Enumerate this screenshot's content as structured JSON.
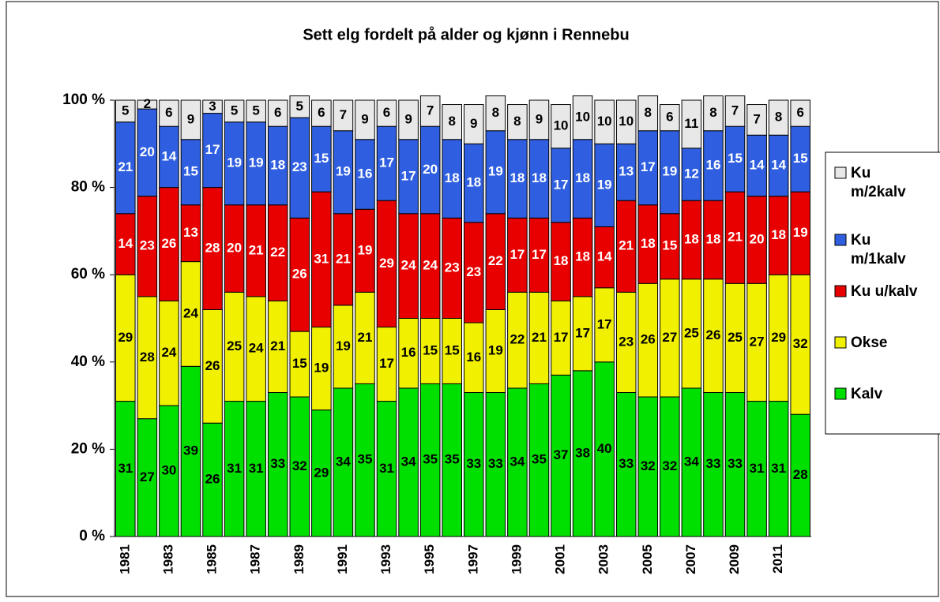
{
  "chart_data": {
    "type": "stacked-bar",
    "title": "Sett elg fordelt på alder og kjønn i Rennebu",
    "categories": [
      "1981",
      null,
      "1983",
      null,
      "1985",
      null,
      "1987",
      null,
      "1989",
      null,
      "1991",
      null,
      "1993",
      null,
      "1995",
      null,
      "1997",
      null,
      "1999",
      null,
      "2001",
      null,
      "2003",
      null,
      "2005",
      null,
      "2007",
      null,
      "2009",
      null,
      "2011",
      null
    ],
    "series": [
      {
        "name": "Kalv",
        "color": "#00e000",
        "values": [
          31,
          27,
          30,
          39,
          26,
          31,
          31,
          33,
          32,
          29,
          34,
          35,
          31,
          34,
          35,
          35,
          33,
          33,
          34,
          35,
          37,
          38,
          40,
          33,
          32,
          32,
          34,
          33,
          33,
          31,
          31,
          28
        ]
      },
      {
        "name": "Okse",
        "color": "#f0f000",
        "values": [
          29,
          28,
          24,
          24,
          26,
          25,
          24,
          21,
          15,
          19,
          19,
          21,
          17,
          16,
          15,
          15,
          16,
          19,
          22,
          21,
          17,
          17,
          17,
          23,
          26,
          27,
          25,
          26,
          25,
          27,
          29,
          32
        ]
      },
      {
        "name": "Ku u/kalv",
        "color": "#e80000",
        "values": [
          14,
          23,
          26,
          13,
          28,
          20,
          21,
          22,
          26,
          31,
          21,
          19,
          29,
          24,
          24,
          23,
          23,
          22,
          17,
          17,
          18,
          18,
          14,
          21,
          18,
          15,
          18,
          18,
          21,
          20,
          18,
          19
        ]
      },
      {
        "name": "Ku m/1kalv",
        "color": "#2f5fe0",
        "values": [
          21,
          20,
          14,
          15,
          17,
          19,
          19,
          18,
          23,
          15,
          19,
          16,
          17,
          17,
          20,
          18,
          18,
          19,
          18,
          18,
          17,
          18,
          19,
          13,
          17,
          19,
          12,
          16,
          15,
          14,
          14,
          15
        ]
      },
      {
        "name": "Ku m/2kalv",
        "color": "#e8e8e8",
        "values": [
          5,
          2,
          6,
          9,
          3,
          5,
          5,
          6,
          5,
          6,
          7,
          9,
          6,
          9,
          7,
          8,
          9,
          8,
          8,
          9,
          10,
          10,
          10,
          10,
          8,
          6,
          11,
          8,
          7,
          7,
          8,
          6
        ]
      }
    ],
    "ylim": [
      0,
      100
    ],
    "yticks": [
      {
        "value": 0,
        "label": "0 %"
      },
      {
        "value": 20,
        "label": "20 %"
      },
      {
        "value": 40,
        "label": "40 %"
      },
      {
        "value": 60,
        "label": "60 %"
      },
      {
        "value": 80,
        "label": "80 %"
      },
      {
        "value": 100,
        "label": "100 %"
      }
    ]
  }
}
